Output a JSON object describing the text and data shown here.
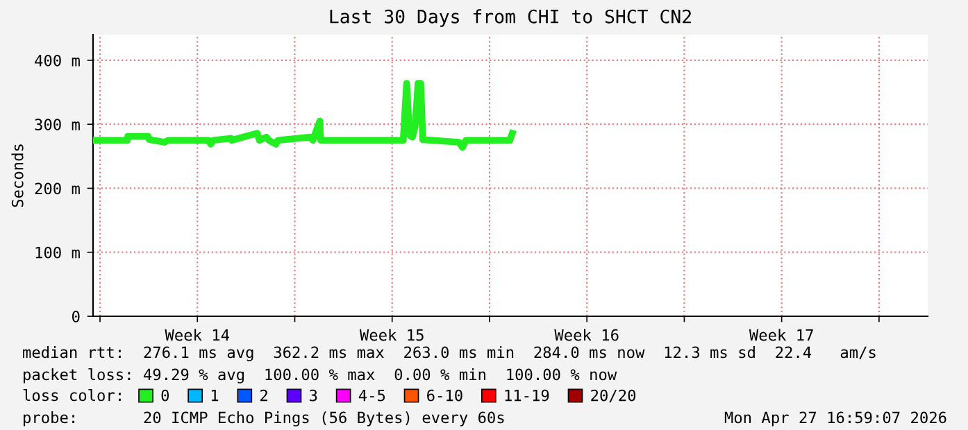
{
  "chart_data": {
    "type": "line",
    "title": "Last 30 Days from CHI to SHCT CN2",
    "ylabel": "Seconds",
    "x": [
      "2026-03-28T17:00",
      "2026-03-29T22:30",
      "2026-03-29T23:00",
      "2026-03-30T16:30",
      "2026-03-30T17:30",
      "2026-03-31T06:40",
      "2026-03-31T09:50",
      "2026-04-01T20:35",
      "2026-04-01T22:30",
      "2026-04-02T00:40",
      "2026-04-02T15:50",
      "2026-04-02T16:30",
      "2026-04-03T14:35",
      "2026-04-03T16:30",
      "2026-04-03T22:30",
      "2026-04-04T00:40",
      "2026-04-04T06:40",
      "2026-04-04T08:35",
      "2026-04-05T12:40",
      "2026-04-05T14:35",
      "2026-04-05T20:35",
      "2026-04-05T21:20",
      "2026-04-08T20:35",
      "2026-04-08T23:30",
      "2026-04-09T01:55",
      "2026-04-09T04:30",
      "2026-04-09T06:55",
      "2026-04-09T09:20",
      "2026-04-09T11:40",
      "2026-04-09T13:25",
      "2026-04-10T20:35",
      "2026-04-10T23:40",
      "2026-04-11T02:35",
      "2026-04-12T16:30",
      "2026-04-12T18:40"
    ],
    "series": [
      {
        "name": "0",
        "color": "#22ee22",
        "values": [
          275,
          275,
          281,
          281,
          276,
          272,
          275,
          275,
          269,
          275,
          278,
          275,
          286,
          275,
          280,
          275,
          269,
          275,
          280,
          275,
          305,
          275,
          275,
          364,
          283,
          280,
          298,
          364,
          364,
          276,
          272,
          264,
          275,
          275,
          286
        ]
      },
      {
        "name": "1",
        "color": "#00b8ff",
        "values": [
          null,
          null,
          null,
          null,
          null,
          null,
          null,
          null,
          null,
          null,
          null,
          null,
          null,
          null,
          null,
          null,
          null,
          null,
          null,
          null,
          null,
          null,
          null,
          null,
          null,
          null,
          null,
          null,
          null,
          null,
          null,
          null,
          null,
          null,
          null
        ]
      },
      {
        "name": "2",
        "color": "#0059ff",
        "values": [
          null,
          null,
          null,
          null,
          null,
          null,
          null,
          null,
          null,
          null,
          null,
          null,
          null,
          null,
          null,
          null,
          null,
          null,
          null,
          null,
          null,
          null,
          null,
          null,
          null,
          null,
          null,
          null,
          null,
          null,
          null,
          null,
          null,
          null,
          null
        ]
      },
      {
        "name": "3",
        "color": "#5e00ff",
        "values": [
          null,
          null,
          null,
          null,
          null,
          null,
          null,
          null,
          null,
          null,
          null,
          null,
          null,
          null,
          null,
          null,
          null,
          null,
          null,
          null,
          null,
          null,
          null,
          null,
          null,
          null,
          null,
          null,
          null,
          null,
          null,
          null,
          null,
          null,
          null
        ]
      },
      {
        "name": "4-5",
        "color": "#ff00ff",
        "values": [
          null,
          null,
          null,
          null,
          null,
          null,
          null,
          null,
          null,
          null,
          null,
          null,
          null,
          null,
          null,
          null,
          null,
          null,
          null,
          null,
          null,
          null,
          null,
          null,
          null,
          null,
          null,
          null,
          null,
          null,
          null,
          null,
          null,
          null,
          null
        ]
      },
      {
        "name": "6-10",
        "color": "#ff5500",
        "values": [
          null,
          null,
          null,
          null,
          null,
          null,
          null,
          null,
          null,
          null,
          null,
          null,
          null,
          null,
          null,
          null,
          null,
          null,
          null,
          null,
          null,
          null,
          null,
          null,
          null,
          null,
          null,
          null,
          null,
          null,
          null,
          null,
          null,
          null,
          null
        ]
      },
      {
        "name": "11-19",
        "color": "#ff0000",
        "values": [
          null,
          null,
          null,
          null,
          null,
          null,
          null,
          null,
          null,
          null,
          null,
          null,
          null,
          null,
          null,
          null,
          null,
          null,
          null,
          null,
          null,
          null,
          null,
          null,
          null,
          null,
          null,
          null,
          null,
          null,
          null,
          null,
          null,
          null,
          null
        ]
      },
      {
        "name": "20/20",
        "color": "#a10000",
        "values": [
          null,
          null,
          null,
          null,
          null,
          null,
          null,
          null,
          null,
          null,
          null,
          null,
          null,
          null,
          null,
          null,
          null,
          null,
          null,
          null,
          null,
          null,
          null,
          null,
          null,
          null,
          null,
          null,
          null,
          null,
          null,
          null,
          null,
          null,
          null
        ]
      }
    ],
    "legend": "bottom",
    "legend_title": "loss color:",
    "xlim": [
      "2026-03-28T17:00",
      "2026-04-27T17:00"
    ],
    "ylim": [
      0,
      440
    ],
    "xticks": [
      {
        "value": "2026-03-28T23:00",
        "label": null
      },
      {
        "value": "2026-04-01T11:00",
        "label": "Week 14"
      },
      {
        "value": "2026-04-04T23:00",
        "label": null
      },
      {
        "value": "2026-04-08T11:00",
        "label": "Week 15"
      },
      {
        "value": "2026-04-11T23:00",
        "label": null
      },
      {
        "value": "2026-04-15T11:00",
        "label": "Week 16"
      },
      {
        "value": "2026-04-18T23:00",
        "label": null
      },
      {
        "value": "2026-04-22T11:00",
        "label": "Week 17"
      },
      {
        "value": "2026-04-25T23:00",
        "label": null
      }
    ],
    "yticks": [
      {
        "value": 0,
        "label": "0"
      },
      {
        "value": 100,
        "label": "100 m"
      },
      {
        "value": 200,
        "label": "200 m"
      },
      {
        "value": 300,
        "label": "300 m"
      },
      {
        "value": 400,
        "label": "400 m"
      }
    ],
    "grid": true,
    "annotations": [
      "median rtt:  276.1 ms avg  362.2 ms max  263.0 ms min  284.0 ms now  12.3 ms sd  22.4   am/s",
      "packet loss: 49.29 % avg  100.00 % max  0.00 % min  100.00 % now",
      "probe:       20 ICMP Echo Pings (56 Bytes) every 60s",
      "Mon Apr 27 16:59:07 2026"
    ]
  }
}
